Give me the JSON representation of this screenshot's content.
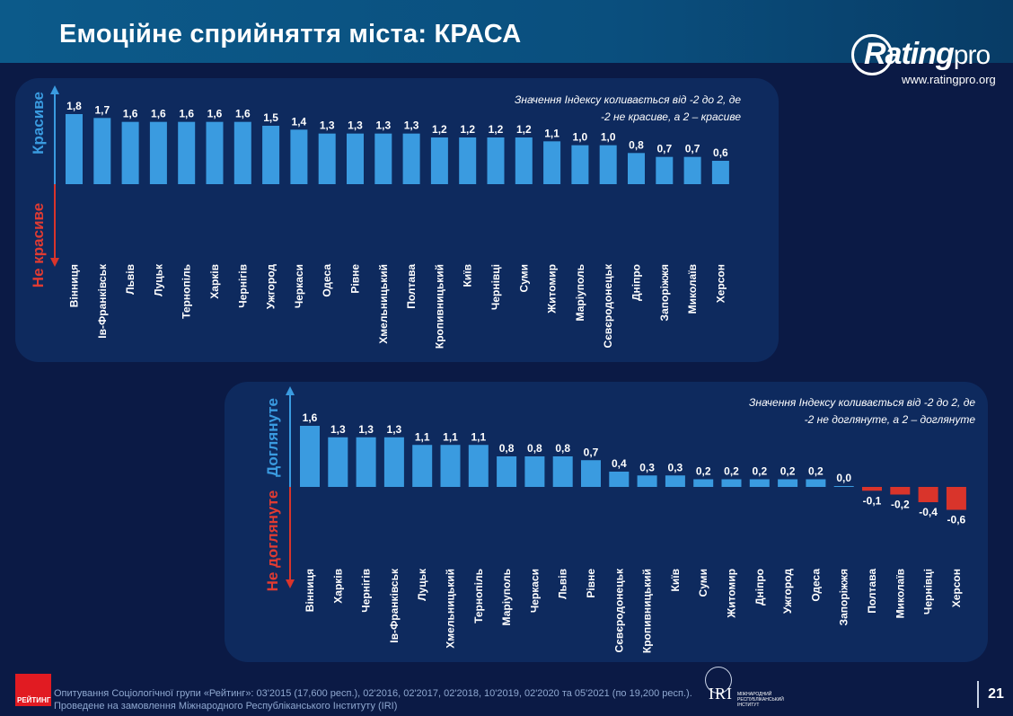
{
  "title": "Емоційне сприйняття міста: КРАСА",
  "logo": {
    "name": "Rating",
    "pro": "pro",
    "url": "www.ratingpro.org"
  },
  "chart_data": [
    {
      "type": "bar",
      "axis_top_label": "Красиве",
      "axis_bottom_label": "Не красиве",
      "note": [
        "Значення Індексу коливається від -2 до 2, де",
        "-2 не красиве, а 2 – красиве"
      ],
      "categories": [
        "Вінниця",
        "Ів-Франківськ",
        "Львів",
        "Луцьк",
        "Тернопіль",
        "Харків",
        "Чернігів",
        "Ужгород",
        "Черкаси",
        "Одеса",
        "Рівне",
        "Хмельницький",
        "Полтава",
        "Кропивницький",
        "Київ",
        "Чернівці",
        "Суми",
        "Житомир",
        "Маріуполь",
        "Сєвєродонецьк",
        "Дніпро",
        "Запоріжжя",
        "Миколаїв",
        "Херсон"
      ],
      "values": [
        1.8,
        1.7,
        1.6,
        1.6,
        1.6,
        1.6,
        1.6,
        1.5,
        1.4,
        1.3,
        1.3,
        1.3,
        1.3,
        1.2,
        1.2,
        1.2,
        1.2,
        1.1,
        1.0,
        1.0,
        0.8,
        0.7,
        0.7,
        0.6
      ],
      "labels": [
        "1,8",
        "1,7",
        "1,6",
        "1,6",
        "1,6",
        "1,6",
        "1,6",
        "1,5",
        "1,4",
        "1,3",
        "1,3",
        "1,3",
        "1,3",
        "1,2",
        "1,2",
        "1,2",
        "1,2",
        "1,1",
        "1,0",
        "1,0",
        "0,8",
        "0,7",
        "0,7",
        "0,6"
      ],
      "ylim": [
        -2,
        2
      ],
      "colors": {
        "positive": "#3a9be0",
        "negative": "#d9342b"
      }
    },
    {
      "type": "bar",
      "axis_top_label": "Доглянуте",
      "axis_bottom_label": "Не доглянуте",
      "note": [
        "Значення Індексу коливається від -2 до 2, де",
        "-2 не доглянуте, а 2 – доглянуте"
      ],
      "categories": [
        "Вінниця",
        "Харків",
        "Чернігів",
        "Ів-Франківськ",
        "Луцьк",
        "Хмельницький",
        "Тернопіль",
        "Маріуполь",
        "Черкаси",
        "Львів",
        "Рівне",
        "Сєвєродонецьк",
        "Кропивницький",
        "Київ",
        "Суми",
        "Житомир",
        "Дніпро",
        "Ужгород",
        "Одеса",
        "Запоріжжя",
        "Полтава",
        "Миколаїв",
        "Чернівці",
        "Херсон"
      ],
      "values": [
        1.6,
        1.3,
        1.3,
        1.3,
        1.1,
        1.1,
        1.1,
        0.8,
        0.8,
        0.8,
        0.7,
        0.4,
        0.3,
        0.3,
        0.2,
        0.2,
        0.2,
        0.2,
        0.2,
        0.0,
        -0.1,
        -0.2,
        -0.4,
        -0.6
      ],
      "labels": [
        "1,6",
        "1,3",
        "1,3",
        "1,3",
        "1,1",
        "1,1",
        "1,1",
        "0,8",
        "0,8",
        "0,8",
        "0,7",
        "0,4",
        "0,3",
        "0,3",
        "0,2",
        "0,2",
        "0,2",
        "0,2",
        "0,2",
        "0,0",
        "-0,1",
        "-0,2",
        "-0,4",
        "-0,6"
      ],
      "ylim": [
        -2,
        2
      ],
      "colors": {
        "positive": "#3a9be0",
        "negative": "#d9342b"
      }
    }
  ],
  "footer": {
    "line1": "Опитування Соціологічної групи «Рейтинг»: 03'2015 (17,600 респ.), 02'2016, 02'2017, 02'2018, 10'2019, 02'2020 та 05'2021 (по 19,200 респ.).",
    "line2": "Проведене на замовлення Міжнародного Республіканського Інституту (IRI)",
    "rating_logo": "РЕЙТИНГ",
    "iri": "IRI",
    "iri_sub": "МІЖНАРОДНИЙ РЕСПУБЛІКАНСЬКИЙ ІНСТИТУТ"
  },
  "page_number": "21"
}
